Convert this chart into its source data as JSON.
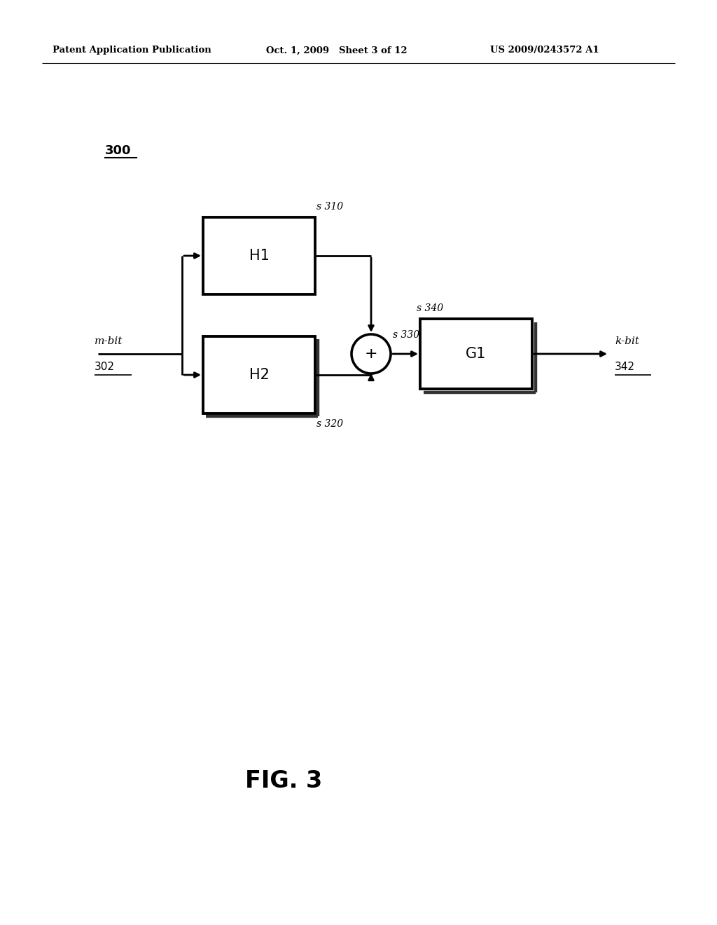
{
  "background_color": "#ffffff",
  "header_left": "Patent Application Publication",
  "header_mid": "Oct. 1, 2009   Sheet 3 of 12",
  "header_right": "US 2009/0243572 A1",
  "fig_label": "FIG. 3",
  "diagram_label": "300",
  "block_H1_label": "H1",
  "block_H2_label": "H2",
  "block_G1_label": "G1",
  "sum_symbol": "+",
  "label_310": "310",
  "label_320": "320",
  "label_330": "330",
  "label_340": "340",
  "label_342": "342",
  "input_label_line1": "m-bit",
  "input_label_line2": "302",
  "output_label_line1": "k-bit",
  "output_label_line2": "342",
  "line_color": "#000000",
  "text_color": "#000000",
  "lw": 2.0
}
